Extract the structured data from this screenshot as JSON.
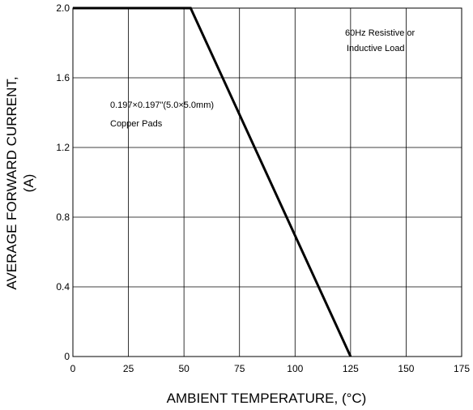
{
  "chart_data": {
    "type": "line",
    "title": "",
    "xlabel": "AMBIENT TEMPERATURE, (°C)",
    "ylabel_line1": "AVERAGE FORWARD CURRENT,",
    "ylabel_line2": "(A)",
    "xlim": [
      0,
      175
    ],
    "ylim": [
      0,
      2.0
    ],
    "grid": true,
    "x_ticks": [
      0,
      25,
      50,
      75,
      100,
      125,
      150,
      175
    ],
    "x_tick_labels": [
      "0",
      "25",
      "50",
      "75",
      "100",
      "125",
      "150",
      "175"
    ],
    "y_ticks": [
      0,
      0.4,
      0.8,
      1.2,
      1.6,
      2.0
    ],
    "y_tick_labels": [
      "0",
      "0.4",
      "0.8",
      "1.2",
      "1.6",
      "2.0"
    ],
    "series": [
      {
        "x": [
          0,
          53,
          125
        ],
        "y": [
          2.0,
          2.0,
          0
        ]
      }
    ],
    "annotations": {
      "load_line1": "60Hz Resistive or",
      "load_line2": "Inductive Load",
      "pads_line1": "0.197×0.197\"(5.0×5.0mm)",
      "pads_line2": "Copper Pads"
    },
    "colors": {
      "line": "#000000",
      "grid": "#000000",
      "background": "#ffffff"
    }
  }
}
